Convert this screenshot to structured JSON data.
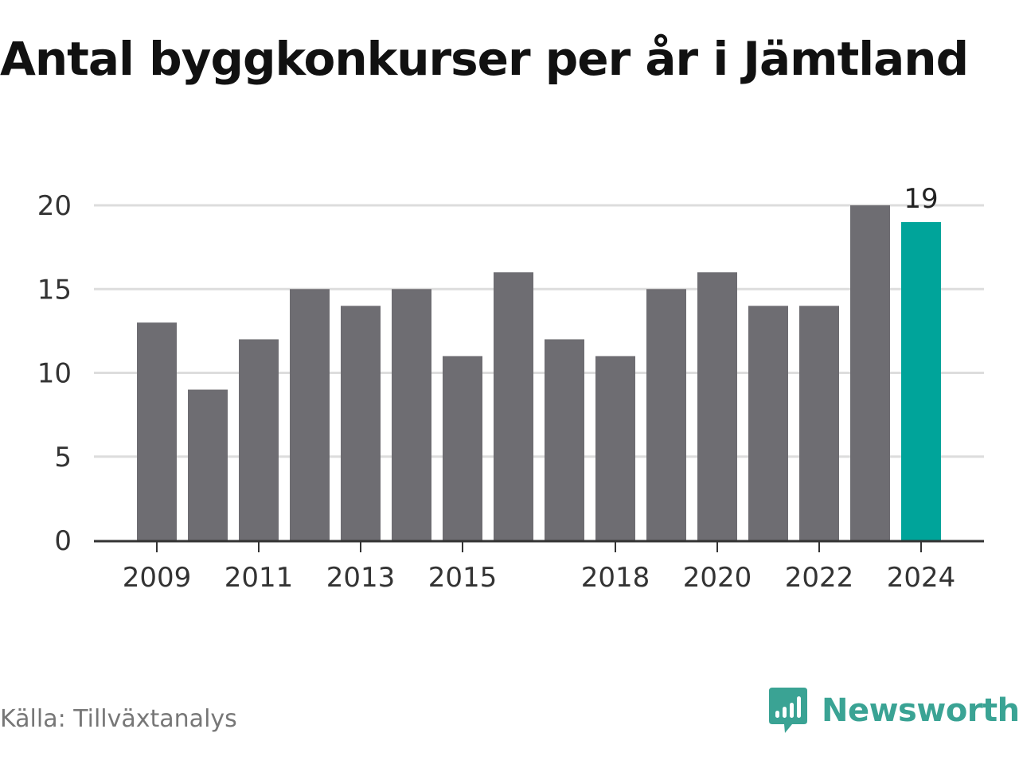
{
  "title": "Antal byggkonkurser per år i Jämtland",
  "source": "Källa: Tillväxtanalys",
  "brand": {
    "name": "Newsworthy",
    "color": "#3aa394"
  },
  "colors": {
    "bar": "#6e6d72",
    "highlight": "#00a49a",
    "grid": "#dddddd",
    "axis": "#333333"
  },
  "chart_data": {
    "type": "bar",
    "title": "Antal byggkonkurser per år i Jämtland",
    "xlabel": "",
    "ylabel": "",
    "categories": [
      "2009",
      "2010",
      "2011",
      "2012",
      "2013",
      "2014",
      "2015",
      "2016",
      "2017",
      "2018",
      "2019",
      "2020",
      "2021",
      "2022",
      "2023",
      "2024"
    ],
    "values": [
      13,
      9,
      12,
      15,
      14,
      15,
      11,
      16,
      12,
      11,
      15,
      16,
      14,
      14,
      20,
      19
    ],
    "x_tick_labels": [
      "2009",
      "2011",
      "2013",
      "2015",
      "2018",
      "2020",
      "2022",
      "2024"
    ],
    "y_ticks": [
      0,
      5,
      10,
      15,
      20
    ],
    "ylim": [
      0,
      20
    ],
    "grid": true,
    "highlight": {
      "category": "2024",
      "label": "19"
    }
  }
}
